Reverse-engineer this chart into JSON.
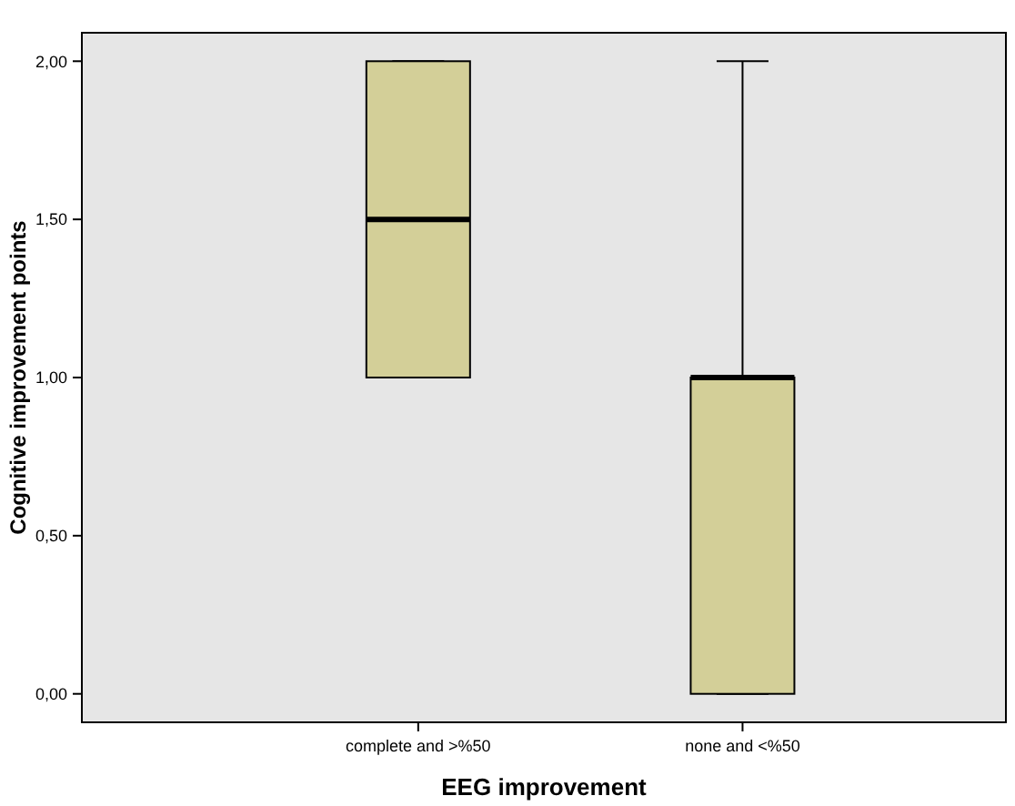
{
  "chart_data": {
    "type": "box",
    "xlabel": "EEG improvement",
    "ylabel": "Cognitive improvement points",
    "categories": [
      "complete and >%50",
      "none and <%50"
    ],
    "color": "#d3cf98",
    "boxes": [
      {
        "low": 1,
        "q1": 1,
        "median": 1.5,
        "q3": 2,
        "high": 2
      },
      {
        "low": 0,
        "q1": 0,
        "median": 1,
        "q3": 1,
        "high": 2
      }
    ],
    "ylim": [
      -0.09,
      2.09
    ],
    "yticks": [
      {
        "value": 0,
        "label": "0,00"
      },
      {
        "value": 0.5,
        "label": "0,50"
      },
      {
        "value": 1,
        "label": "1,00"
      },
      {
        "value": 1.5,
        "label": "1,50"
      },
      {
        "value": 2,
        "label": "2,00"
      }
    ],
    "grid": false
  }
}
